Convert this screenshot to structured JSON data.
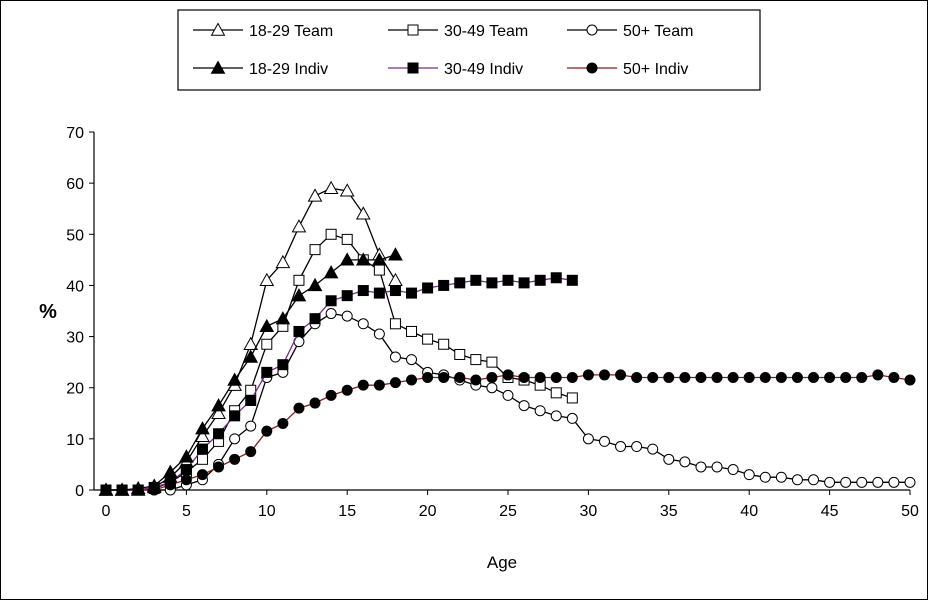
{
  "chart_data": {
    "type": "line",
    "xlabel": "Age",
    "ylabel": "%",
    "xlim": [
      0,
      50
    ],
    "ylim": [
      0,
      70
    ],
    "x_ticks": [
      0,
      5,
      10,
      15,
      20,
      25,
      30,
      35,
      40,
      45,
      50
    ],
    "y_ticks": [
      0,
      10,
      20,
      30,
      40,
      50,
      60,
      70
    ],
    "grid": false,
    "legend_position": "top-center",
    "series": [
      {
        "name": "18-29 Team",
        "marker": "triangle",
        "filled": false,
        "line_color": "#000000",
        "x": [
          0,
          1,
          2,
          3,
          4,
          5,
          6,
          7,
          8,
          9,
          10,
          11,
          12,
          13,
          14,
          15,
          16,
          17,
          18
        ],
        "y": [
          0,
          0,
          0,
          0.5,
          2.5,
          5.5,
          10.5,
          15,
          20.5,
          28.5,
          41,
          44.5,
          51.5,
          57.5,
          59,
          58.5,
          54,
          46,
          41
        ]
      },
      {
        "name": "30-49 Team",
        "marker": "square",
        "filled": false,
        "line_color": "#000000",
        "x": [
          0,
          1,
          2,
          3,
          4,
          5,
          6,
          7,
          8,
          9,
          10,
          11,
          12,
          13,
          14,
          15,
          16,
          17,
          18,
          19,
          20,
          21,
          22,
          23,
          24,
          25,
          26,
          27,
          28,
          29
        ],
        "y": [
          0,
          0,
          0,
          0.3,
          1.5,
          3.5,
          6,
          9.5,
          15.5,
          19.5,
          28.5,
          32,
          41,
          47,
          50,
          49,
          45,
          43,
          32.5,
          31,
          29.5,
          28.5,
          26.5,
          25.5,
          25,
          22,
          21.5,
          20.5,
          19,
          18
        ]
      },
      {
        "name": "50+ Team",
        "marker": "circle",
        "filled": false,
        "line_color": "#000000",
        "x": [
          0,
          1,
          2,
          3,
          4,
          5,
          6,
          7,
          8,
          9,
          10,
          11,
          12,
          13,
          14,
          15,
          16,
          17,
          18,
          19,
          20,
          21,
          22,
          23,
          24,
          25,
          26,
          27,
          28,
          29,
          30,
          31,
          32,
          33,
          34,
          35,
          36,
          37,
          38,
          39,
          40,
          41,
          42,
          43,
          44,
          45,
          46,
          47,
          48,
          49,
          50
        ],
        "y": [
          0,
          0,
          0,
          0,
          0,
          1,
          2,
          5,
          10,
          12.5,
          22,
          23,
          29,
          32.5,
          34.5,
          34,
          32.5,
          30.5,
          26,
          25.5,
          23,
          22.5,
          21.5,
          20.5,
          20,
          18.5,
          16.5,
          15.5,
          14.5,
          14,
          10,
          9.5,
          8.5,
          8.5,
          8,
          6,
          5.5,
          4.5,
          4.5,
          4,
          3,
          2.5,
          2.5,
          2,
          2,
          1.5,
          1.5,
          1.5,
          1.5,
          1.5,
          1.5
        ]
      },
      {
        "name": "18-29 Indiv",
        "marker": "triangle",
        "filled": true,
        "line_color": "#000000",
        "x": [
          0,
          1,
          2,
          3,
          4,
          5,
          6,
          7,
          8,
          9,
          10,
          11,
          12,
          13,
          14,
          15,
          16,
          17,
          18
        ],
        "y": [
          0,
          0,
          0.3,
          0.8,
          3.5,
          6.5,
          12,
          16.5,
          21.5,
          26,
          32,
          33.5,
          38,
          40,
          42.5,
          45,
          45,
          45,
          46
        ]
      },
      {
        "name": "30-49 Indiv",
        "marker": "square",
        "filled": true,
        "line_color": "#7b2a8f",
        "x": [
          0,
          1,
          2,
          3,
          4,
          5,
          6,
          7,
          8,
          9,
          10,
          11,
          12,
          13,
          14,
          15,
          16,
          17,
          18,
          19,
          20,
          21,
          22,
          23,
          24,
          25,
          26,
          27,
          28,
          29
        ],
        "y": [
          0,
          0,
          0,
          0.5,
          1.5,
          4,
          8,
          11,
          14.5,
          17.5,
          23,
          24.5,
          31,
          33.5,
          37,
          38,
          39,
          38.5,
          39,
          38.5,
          39.5,
          40,
          40.5,
          41,
          40.5,
          41,
          40.5,
          41,
          41.5,
          41
        ]
      },
      {
        "name": "50+ Indiv",
        "marker": "circle",
        "filled": true,
        "line_color": "#8b1a1a",
        "x": [
          0,
          1,
          2,
          3,
          4,
          5,
          6,
          7,
          8,
          9,
          10,
          11,
          12,
          13,
          14,
          15,
          16,
          17,
          18,
          19,
          20,
          21,
          22,
          23,
          24,
          25,
          26,
          27,
          28,
          29,
          30,
          31,
          32,
          33,
          34,
          35,
          36,
          37,
          38,
          39,
          40,
          41,
          42,
          43,
          44,
          45,
          46,
          47,
          48,
          49,
          50
        ],
        "y": [
          0,
          0,
          0,
          0,
          1,
          2,
          3,
          4.5,
          6,
          7.5,
          11.5,
          13,
          16,
          17,
          18.5,
          19.5,
          20.5,
          20.5,
          21,
          21.5,
          22,
          22,
          22,
          21.5,
          22,
          22.5,
          22,
          22,
          22,
          22,
          22.5,
          22.5,
          22.5,
          22,
          22,
          22,
          22,
          22,
          22,
          22,
          22,
          22,
          22,
          22,
          22,
          22,
          22,
          22,
          22.5,
          22,
          21.5
        ]
      }
    ]
  }
}
